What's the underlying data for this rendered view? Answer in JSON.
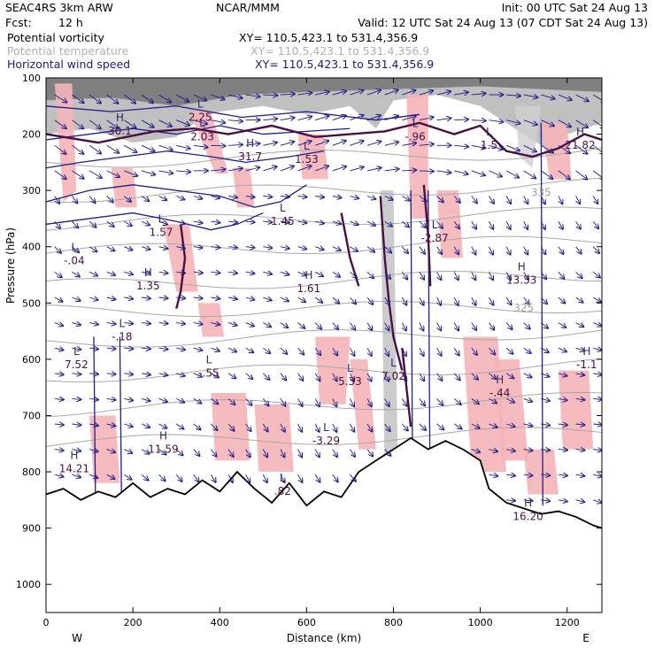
{
  "header": {
    "model": "SEAC4RS  3km ARW",
    "org": "NCAR/MMM",
    "init": "Init: 00 UTC Sat 24 Aug 13",
    "fcst_label": "Fcst:",
    "fcst_value": "12 h",
    "valid": "Valid: 12 UTC Sat 24 Aug 13 (07 CDT Sat 24 Aug 13)"
  },
  "fields": [
    {
      "name": "Potential vorticity",
      "xy": "XY= 110.5,423.1 to 531.4,356.9",
      "color": "#000000"
    },
    {
      "name": "Potential temperature",
      "xy": "XY= 110.5,423.1 to 531.4,356.9",
      "color": "#b0b0b0"
    },
    {
      "name": "Horizontal wind speed",
      "xy": "XY= 110.5,423.1 to 531.4,356.9",
      "color": "#1a1a7a"
    }
  ],
  "chart_data": {
    "type": "cross-section",
    "xlabel": "Distance (km)",
    "ylabel": "Pressure (hPa)",
    "xlim": [
      0,
      1280
    ],
    "ylim": [
      1050,
      100
    ],
    "x_ticks": [
      0,
      200,
      400,
      600,
      800,
      1000,
      1200
    ],
    "y_ticks": [
      100,
      200,
      300,
      400,
      500,
      600,
      700,
      800,
      900,
      1000
    ],
    "x_end_labels": {
      "left": "W",
      "right": "E"
    },
    "theta_labels": [
      {
        "text": "335",
        "x": 1140,
        "p": 310
      },
      {
        "text": "325",
        "x": 1100,
        "p": 515
      }
    ],
    "terrain": [
      [
        0,
        840
      ],
      [
        40,
        830
      ],
      [
        80,
        850
      ],
      [
        120,
        835
      ],
      [
        160,
        845
      ],
      [
        200,
        820
      ],
      [
        240,
        845
      ],
      [
        280,
        830
      ],
      [
        320,
        840
      ],
      [
        360,
        815
      ],
      [
        400,
        835
      ],
      [
        440,
        800
      ],
      [
        480,
        830
      ],
      [
        520,
        855
      ],
      [
        560,
        820
      ],
      [
        600,
        860
      ],
      [
        640,
        835
      ],
      [
        680,
        845
      ],
      [
        720,
        800
      ],
      [
        760,
        780
      ],
      [
        800,
        760
      ],
      [
        840,
        740
      ],
      [
        880,
        760
      ],
      [
        920,
        745
      ],
      [
        960,
        760
      ],
      [
        1000,
        780
      ],
      [
        1020,
        830
      ],
      [
        1060,
        855
      ],
      [
        1100,
        865
      ],
      [
        1140,
        875
      ],
      [
        1180,
        870
      ],
      [
        1220,
        880
      ],
      [
        1260,
        895
      ],
      [
        1280,
        900
      ]
    ],
    "pv_extrema": [
      {
        "type": "H",
        "value": "30.1",
        "x": 170,
        "p": 190
      },
      {
        "type": "L",
        "value": "2.25",
        "x": 355,
        "p": 165
      },
      {
        "type": "L",
        "value": "2.03",
        "x": 360,
        "p": 200
      },
      {
        "type": "H",
        "value": "31.7",
        "x": 470,
        "p": 235
      },
      {
        "type": "L",
        "value": "1.53",
        "x": 600,
        "p": 240
      },
      {
        "type": "L",
        "value": "-.96",
        "x": 850,
        "p": 200
      },
      {
        "type": "L",
        "value": "1.5",
        "x": 1020,
        "p": 215
      },
      {
        "type": "H",
        "value": "21.82",
        "x": 1230,
        "p": 215
      },
      {
        "type": "L",
        "value": "1.57",
        "x": 265,
        "p": 370
      },
      {
        "type": "L",
        "value": "1.45",
        "x": 545,
        "p": 350
      },
      {
        "type": "L",
        "value": "-2.87",
        "x": 895,
        "p": 380
      },
      {
        "type": "L",
        "value": "-.04",
        "x": 65,
        "p": 420
      },
      {
        "type": "H",
        "value": "1.35",
        "x": 235,
        "p": 465
      },
      {
        "type": "H",
        "value": "1.61",
        "x": 605,
        "p": 470
      },
      {
        "type": "H",
        "value": "13.33",
        "x": 1095,
        "p": 455
      },
      {
        "type": "L",
        "value": "-.18",
        "x": 175,
        "p": 555
      },
      {
        "type": "L",
        "value": "7.52",
        "x": 70,
        "p": 605
      },
      {
        "type": "L",
        "value": "-.55",
        "x": 375,
        "p": 620
      },
      {
        "type": "L",
        "value": "5.33",
        "x": 700,
        "p": 635
      },
      {
        "type": "L",
        "value": "7.02",
        "x": 800,
        "p": 625
      },
      {
        "type": "H",
        "value": "-.44",
        "x": 1045,
        "p": 655
      },
      {
        "type": "H",
        "value": "-1.1",
        "x": 1245,
        "p": 605
      },
      {
        "type": "L",
        "value": "-3.29",
        "x": 645,
        "p": 740
      },
      {
        "type": "H",
        "value": "11.59",
        "x": 270,
        "p": 755
      },
      {
        "type": "H",
        "value": "14.21",
        "x": 65,
        "p": 790
      },
      {
        "type": "L",
        "value": ".82",
        "x": 545,
        "p": 830
      },
      {
        "type": "H",
        "value": "16.20",
        "x": 1110,
        "p": 875
      }
    ]
  }
}
